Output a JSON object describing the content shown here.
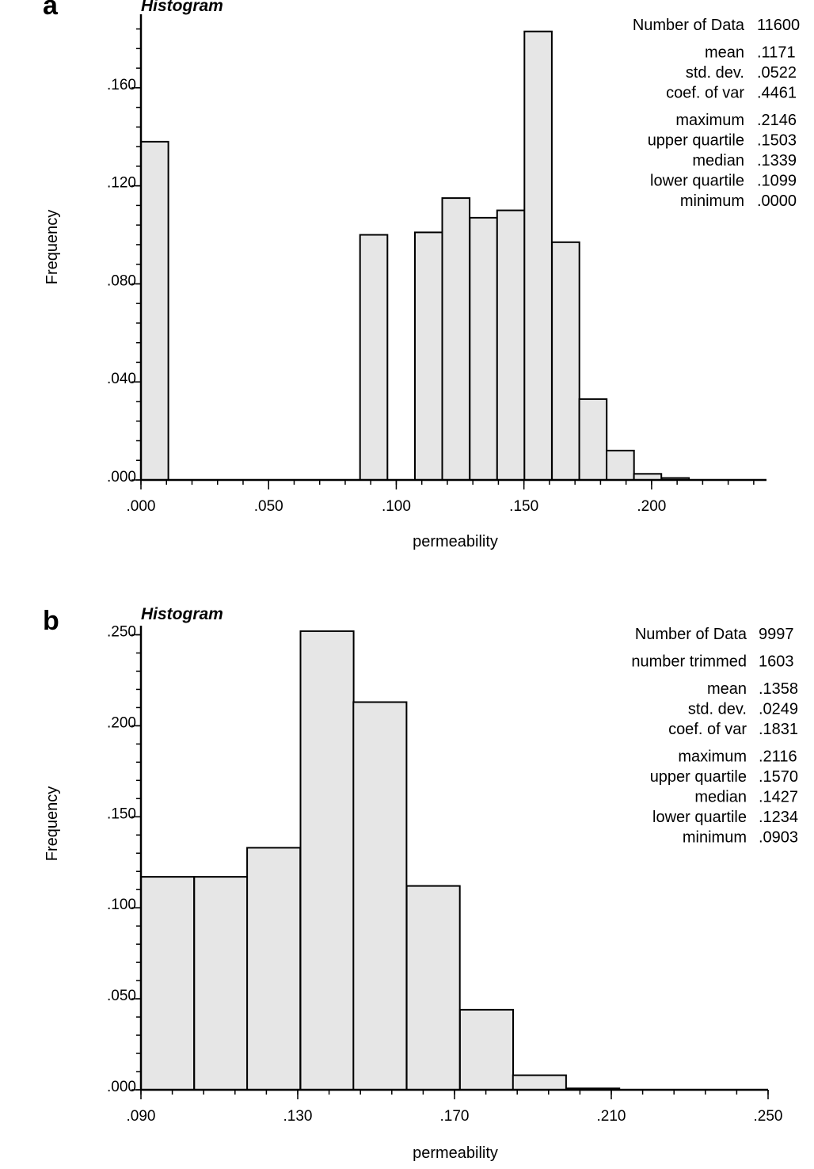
{
  "chart_data": [
    {
      "type": "bar",
      "panel": "a",
      "title": "Histogram",
      "xlabel": "permeability",
      "ylabel": "Frequency",
      "xlim": [
        0,
        0.245
      ],
      "ylim": [
        0,
        0.19
      ],
      "xticks": [
        ".000",
        ".050",
        ".100",
        ".150",
        ".200"
      ],
      "xtick_values": [
        0,
        0.05,
        0.1,
        0.15,
        0.2
      ],
      "yticks": [
        ".000",
        ".040",
        ".080",
        ".120",
        ".160"
      ],
      "ytick_values": [
        0,
        0.04,
        0.08,
        0.12,
        0.16
      ],
      "bin_width": 0.01073,
      "bins": [
        {
          "x0": 0.0,
          "value": 0.138
        },
        {
          "x0": 0.0107,
          "value": 0.0
        },
        {
          "x0": 0.0215,
          "value": 0.0
        },
        {
          "x0": 0.0322,
          "value": 0.0
        },
        {
          "x0": 0.0429,
          "value": 0.0
        },
        {
          "x0": 0.0537,
          "value": 0.0
        },
        {
          "x0": 0.0644,
          "value": 0.0
        },
        {
          "x0": 0.0751,
          "value": 0.0
        },
        {
          "x0": 0.0858,
          "value": 0.1
        },
        {
          "x0": 0.0966,
          "value": 0.0
        },
        {
          "x0": 0.1073,
          "value": 0.101
        },
        {
          "x0": 0.118,
          "value": 0.115
        },
        {
          "x0": 0.1288,
          "value": 0.107
        },
        {
          "x0": 0.1395,
          "value": 0.11
        },
        {
          "x0": 0.1502,
          "value": 0.183
        },
        {
          "x0": 0.161,
          "value": 0.097
        },
        {
          "x0": 0.1717,
          "value": 0.033
        },
        {
          "x0": 0.1824,
          "value": 0.012
        },
        {
          "x0": 0.1931,
          "value": 0.0025
        },
        {
          "x0": 0.2039,
          "value": 0.0008
        }
      ],
      "stats": [
        {
          "label": "Number of Data",
          "value": "11600",
          "gap_before": false
        },
        {
          "label": "mean",
          "value": ".1171",
          "gap_before": true
        },
        {
          "label": "std. dev.",
          "value": ".0522",
          "gap_before": false
        },
        {
          "label": "coef. of var",
          "value": ".4461",
          "gap_before": false
        },
        {
          "label": "maximum",
          "value": ".2146",
          "gap_before": true
        },
        {
          "label": "upper quartile",
          "value": ".1503",
          "gap_before": false
        },
        {
          "label": "median",
          "value": ".1339",
          "gap_before": false
        },
        {
          "label": "lower quartile",
          "value": ".1099",
          "gap_before": false
        },
        {
          "label": "minimum",
          "value": ".0000",
          "gap_before": false
        }
      ]
    },
    {
      "type": "bar",
      "panel": "b",
      "title": "Histogram",
      "xlabel": "permeability",
      "ylabel": "Frequency",
      "xlim": [
        0.09,
        0.25
      ],
      "ylim": [
        0,
        0.255
      ],
      "xticks": [
        ".090",
        ".130",
        ".170",
        ".210",
        ".250"
      ],
      "xtick_values": [
        0.09,
        0.13,
        0.17,
        0.21,
        0.25
      ],
      "yticks": [
        ".000",
        ".050",
        ".100",
        ".150",
        ".200",
        ".250"
      ],
      "ytick_values": [
        0,
        0.05,
        0.1,
        0.15,
        0.2,
        0.25
      ],
      "bin_width": 0.01356,
      "bins": [
        {
          "x0": 0.09,
          "value": 0.117
        },
        {
          "x0": 0.1036,
          "value": 0.117
        },
        {
          "x0": 0.1171,
          "value": 0.133
        },
        {
          "x0": 0.1307,
          "value": 0.252
        },
        {
          "x0": 0.1442,
          "value": 0.213
        },
        {
          "x0": 0.1578,
          "value": 0.112
        },
        {
          "x0": 0.1714,
          "value": 0.044
        },
        {
          "x0": 0.1849,
          "value": 0.008
        },
        {
          "x0": 0.1985,
          "value": 0.0008
        }
      ],
      "stats": [
        {
          "label": "Number of Data",
          "value": "9997",
          "gap_before": false
        },
        {
          "label": "number trimmed",
          "value": "1603",
          "gap_before": true
        },
        {
          "label": "mean",
          "value": ".1358",
          "gap_before": true
        },
        {
          "label": "std. dev.",
          "value": ".0249",
          "gap_before": false
        },
        {
          "label": "coef. of var",
          "value": ".1831",
          "gap_before": false
        },
        {
          "label": "maximum",
          "value": ".2116",
          "gap_before": true
        },
        {
          "label": "upper quartile",
          "value": ".1570",
          "gap_before": false
        },
        {
          "label": "median",
          "value": ".1427",
          "gap_before": false
        },
        {
          "label": "lower quartile",
          "value": ".1234",
          "gap_before": false
        },
        {
          "label": "minimum",
          "value": ".0903",
          "gap_before": false
        }
      ]
    }
  ]
}
